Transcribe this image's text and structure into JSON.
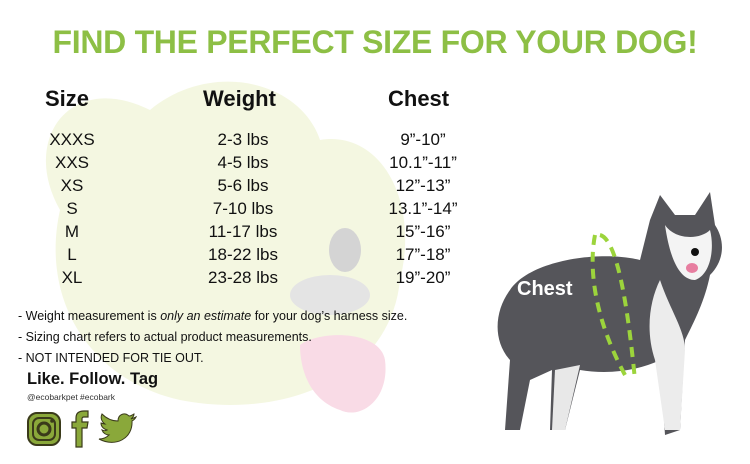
{
  "title": "FIND THE PERFECT SIZE FOR YOUR DOG!",
  "table": {
    "headers": [
      "Size",
      "Weight",
      "Chest"
    ],
    "rows": [
      {
        "size": "XXXS",
        "weight": "2-3 lbs",
        "chest": "9”-10”"
      },
      {
        "size": "XXS",
        "weight": "4-5 lbs",
        "chest": "10.1”-11”"
      },
      {
        "size": "XS",
        "weight": "5-6 lbs",
        "chest": "12”-13”"
      },
      {
        "size": "S",
        "weight": "7-10 lbs",
        "chest": "13.1”-14”"
      },
      {
        "size": "M",
        "weight": "11-17 lbs",
        "chest": "15”-16”"
      },
      {
        "size": "L",
        "weight": "18-22 lbs",
        "chest": "17”-18”"
      },
      {
        "size": "XL",
        "weight": "23-28 lbs",
        "chest": "19”-20”"
      }
    ]
  },
  "notes": {
    "n1_pre": "- Weight measurement is ",
    "n1_em": "only an estimate",
    "n1_post": " for your dog’s harness size.",
    "n2": "- Sizing chart refers to actual product measurements.",
    "n3": "- NOT INTENDED FOR TIE OUT."
  },
  "social": {
    "heading": "Like. Follow. Tag",
    "handles": "@ecobarkpet  #ecobark",
    "icons": [
      "instagram-icon",
      "facebook-icon",
      "twitter-icon"
    ]
  },
  "photo_label": "Chest",
  "colors": {
    "accent": "#8dbf45",
    "icon": "#8aa83a"
  }
}
